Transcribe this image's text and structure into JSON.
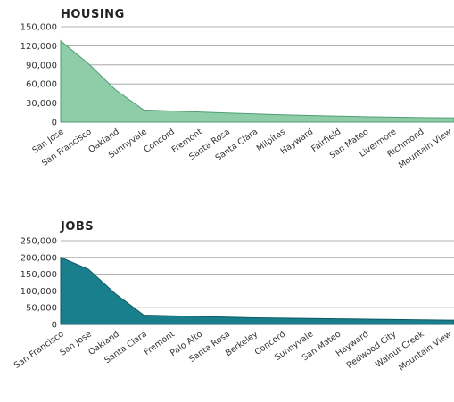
{
  "chart_data": [
    {
      "type": "area",
      "title": "HOUSING",
      "categories": [
        "San Jose",
        "San Francisco",
        "Oakland",
        "Sunnyvale",
        "Concord",
        "Fremont",
        "Santa Rosa",
        "Santa Clara",
        "Milpitas",
        "Hayward",
        "Fairfield",
        "San Mateo",
        "Livermore",
        "Richmond",
        "Mountain View"
      ],
      "values": [
        128000,
        92000,
        50000,
        19000,
        17500,
        16000,
        14500,
        13000,
        11500,
        10500,
        9500,
        8500,
        7800,
        7200,
        6800
      ],
      "ylim": [
        0,
        150000
      ],
      "yticks": [
        "150,000",
        "120,000",
        "90,000",
        "60,000",
        "30,000",
        "0"
      ],
      "ytick_values": [
        150000,
        120000,
        90000,
        60000,
        30000,
        0
      ],
      "grid": true,
      "colors": {
        "fill": "#8fcca8",
        "line": "#4e9e74"
      }
    },
    {
      "type": "area",
      "title": "JOBS",
      "categories": [
        "San Francisco",
        "San Jose",
        "Oakland",
        "Santa Clara",
        "Fremont",
        "Palo Alto",
        "Santa Rosa",
        "Berkeley",
        "Concord",
        "Sunnyvale",
        "San Mateo",
        "Hayward",
        "Redwood City",
        "Walnut Creek",
        "Mountain View"
      ],
      "values": [
        200000,
        165000,
        90000,
        28000,
        26000,
        24000,
        22000,
        20000,
        19000,
        18000,
        17000,
        16000,
        15000,
        14000,
        13000
      ],
      "ylim": [
        0,
        250000
      ],
      "yticks": [
        "250,000",
        "200,000",
        "150,000",
        "100,000",
        "50,000",
        "0"
      ],
      "ytick_values": [
        250000,
        200000,
        150000,
        100000,
        50000,
        0
      ],
      "grid": true,
      "colors": {
        "fill": "#1a7f8c",
        "line": "#0d5a64"
      }
    }
  ]
}
